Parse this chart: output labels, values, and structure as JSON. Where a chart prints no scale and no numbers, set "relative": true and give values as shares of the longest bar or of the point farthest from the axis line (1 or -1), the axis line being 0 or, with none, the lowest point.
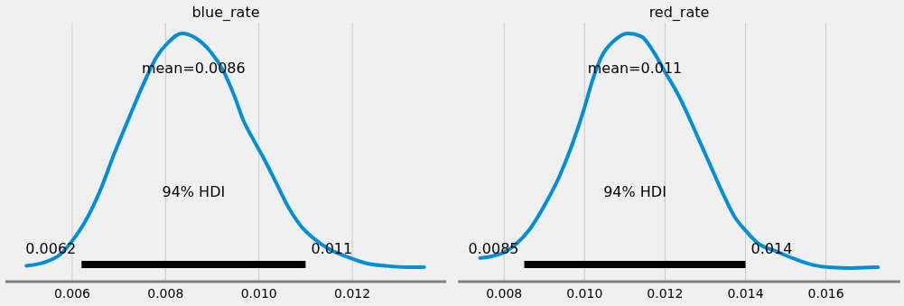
{
  "chart_data": [
    {
      "type": "line",
      "title": "blue_rate",
      "relative": true,
      "grid": "x",
      "xlim": [
        0.00457,
        0.01401
      ],
      "xticks": [
        0.006,
        0.008,
        {
          "value": 0.01,
          "label": "0.010"
        },
        0.012
      ],
      "series": [
        {
          "color": "#008fd5",
          "x": [
            0.00502,
            0.00542,
            0.00574,
            0.006,
            0.00626,
            0.00658,
            0.0069,
            0.00722,
            0.00755,
            0.0078,
            0.00806,
            0.00835,
            0.00864,
            0.00896,
            0.00922,
            0.00948,
            0.00967,
            0.00987,
            0.01012,
            0.01038,
            0.01064,
            0.0109,
            0.01116,
            0.01154,
            0.01193,
            0.01232,
            0.0127,
            0.01315,
            0.01354
          ],
          "values": [
            0.064,
            0.079,
            0.109,
            0.164,
            0.236,
            0.358,
            0.515,
            0.661,
            0.806,
            0.903,
            0.964,
            1.0,
            0.982,
            0.927,
            0.855,
            0.745,
            0.648,
            0.576,
            0.491,
            0.394,
            0.297,
            0.224,
            0.176,
            0.127,
            0.097,
            0.073,
            0.064,
            0.058,
            0.058
          ]
        },
        {
          "color": "#000000",
          "x": [
            0.0062,
            0.011
          ],
          "values": [
            0.069,
            0.069
          ]
        }
      ],
      "annotations": [
        "mean=0.0086",
        "94% HDI",
        "0.0062",
        "0.011"
      ]
    },
    {
      "type": "line",
      "title": "red_rate",
      "relative": true,
      "grid": "x",
      "xlim": [
        0.00685,
        0.01785
      ],
      "xticks": [
        0.008,
        {
          "value": 0.01,
          "label": "0.010"
        },
        0.012,
        0.014,
        0.016
      ],
      "series": [
        {
          "color": "#008fd5",
          "x": [
            0.0074,
            0.00766,
            0.008,
            0.0083,
            0.00864,
            0.00901,
            0.00939,
            0.00969,
            0.00999,
            0.01021,
            0.01043,
            0.01073,
            0.01107,
            0.01141,
            0.01171,
            0.01201,
            0.01231,
            0.01253,
            0.01283,
            0.01313,
            0.01343,
            0.01373,
            0.014,
            0.01433,
            0.01478,
            0.01523,
            0.01568,
            0.01614,
            0.01665,
            0.01729
          ],
          "values": [
            0.095,
            0.101,
            0.118,
            0.152,
            0.212,
            0.309,
            0.43,
            0.552,
            0.697,
            0.818,
            0.909,
            0.97,
            1.0,
            0.988,
            0.927,
            0.842,
            0.758,
            0.685,
            0.576,
            0.467,
            0.358,
            0.261,
            0.206,
            0.152,
            0.121,
            0.091,
            0.067,
            0.057,
            0.055,
            0.058
          ]
        },
        {
          "color": "#000000",
          "x": [
            0.0085,
            0.014
          ],
          "values": [
            0.069,
            0.069
          ]
        }
      ],
      "annotations": [
        "mean=0.011",
        "94% HDI",
        "0.0085",
        "0.014"
      ]
    }
  ]
}
